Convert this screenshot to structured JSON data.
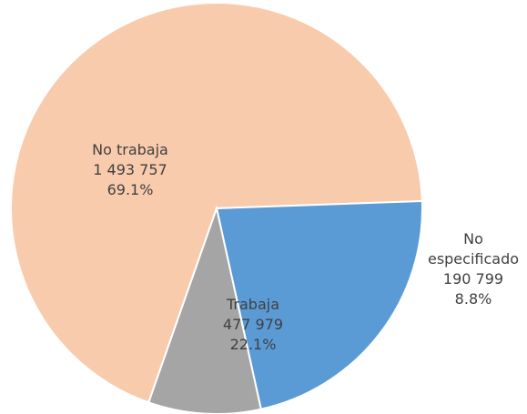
{
  "chart_data": {
    "type": "pie",
    "categories": [
      "No trabaja",
      "Trabaja",
      "No especificado"
    ],
    "values": [
      1493757,
      477979,
      190799
    ],
    "value_labels": [
      "1 493 757",
      "477 979",
      "190 799"
    ],
    "percent_labels": [
      "69.1%",
      "22.1%",
      "8.8%"
    ],
    "colors": [
      "#f8cbad",
      "#5b9bd5",
      "#a5a5a5"
    ]
  }
}
